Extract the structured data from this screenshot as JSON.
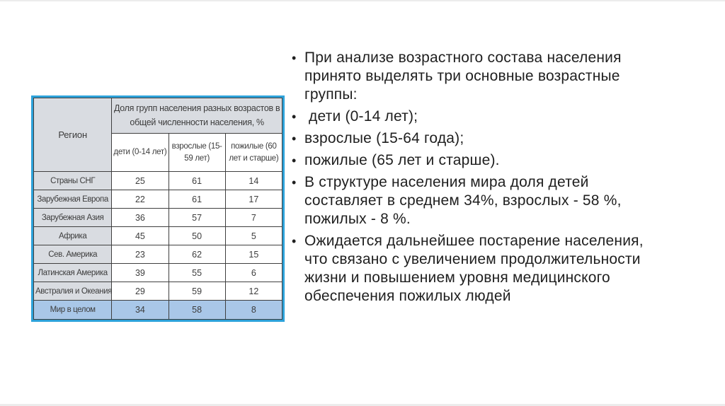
{
  "slide": {
    "background": "#ffffff",
    "text_color": "#1f1f1f"
  },
  "bullets": {
    "marker": "•",
    "items": [
      "При анализе возрастного состава населения принято выделять три основные возрастные группы:",
      " дети (0-14 лет);",
      "взрослые (15-64 года);",
      "пожилые (65 лет и старше).",
      "В структуре населения мира доля детей составляет в среднем 34%, взрослых - 58 %, пожилых - 8 %.",
      "Ожидается дальнейшее постарение населения, что связано с увеличением продолжительности жизни и повышением уровня медицинского обеспечения пожилых людей"
    ]
  },
  "table": {
    "corner_header": "Регион",
    "group_header": "Доля групп населения разных возрастов в общей численности населения, %",
    "columns": [
      "дети (0-14 лет)",
      "взрослые (15-59 лет)",
      "пожилые (60 лет и старше)"
    ],
    "rows": [
      {
        "region": "Страны СНГ",
        "values": [
          25,
          61,
          14
        ]
      },
      {
        "region": "Зарубежная Европа",
        "values": [
          22,
          61,
          17
        ]
      },
      {
        "region": "Зарубежная Азия",
        "values": [
          36,
          57,
          7
        ]
      },
      {
        "region": "Африка",
        "values": [
          45,
          50,
          5
        ]
      },
      {
        "region": "Сев. Америка",
        "values": [
          23,
          62,
          15
        ]
      },
      {
        "region": "Латинская Америка",
        "values": [
          39,
          55,
          6
        ]
      },
      {
        "region": "Австралия и Океания",
        "values": [
          29,
          59,
          12
        ]
      }
    ],
    "total_row": {
      "region": "Мир в целом",
      "values": [
        34,
        58,
        8
      ]
    },
    "colors": {
      "outer_border": "#2da2da",
      "grid": "#3f3f3f",
      "header_bg": "#d9dce1",
      "total_bg": "#a9c7e8",
      "cell_bg": "#ffffff"
    }
  },
  "chart_data": {
    "type": "table",
    "title": "Доля групп населения разных возрастов в общей численности населения, %",
    "categories": [
      "Страны СНГ",
      "Зарубежная Европа",
      "Зарубежная Азия",
      "Африка",
      "Сев. Америка",
      "Латинская Америка",
      "Австралия и Океания",
      "Мир в целом"
    ],
    "series": [
      {
        "name": "дети (0-14 лет)",
        "values": [
          25,
          22,
          36,
          45,
          23,
          39,
          29,
          34
        ]
      },
      {
        "name": "взрослые (15-59 лет)",
        "values": [
          61,
          61,
          57,
          50,
          62,
          55,
          59,
          58
        ]
      },
      {
        "name": "пожилые (60 лет и старше)",
        "values": [
          14,
          17,
          7,
          5,
          15,
          6,
          12,
          8
        ]
      }
    ]
  }
}
